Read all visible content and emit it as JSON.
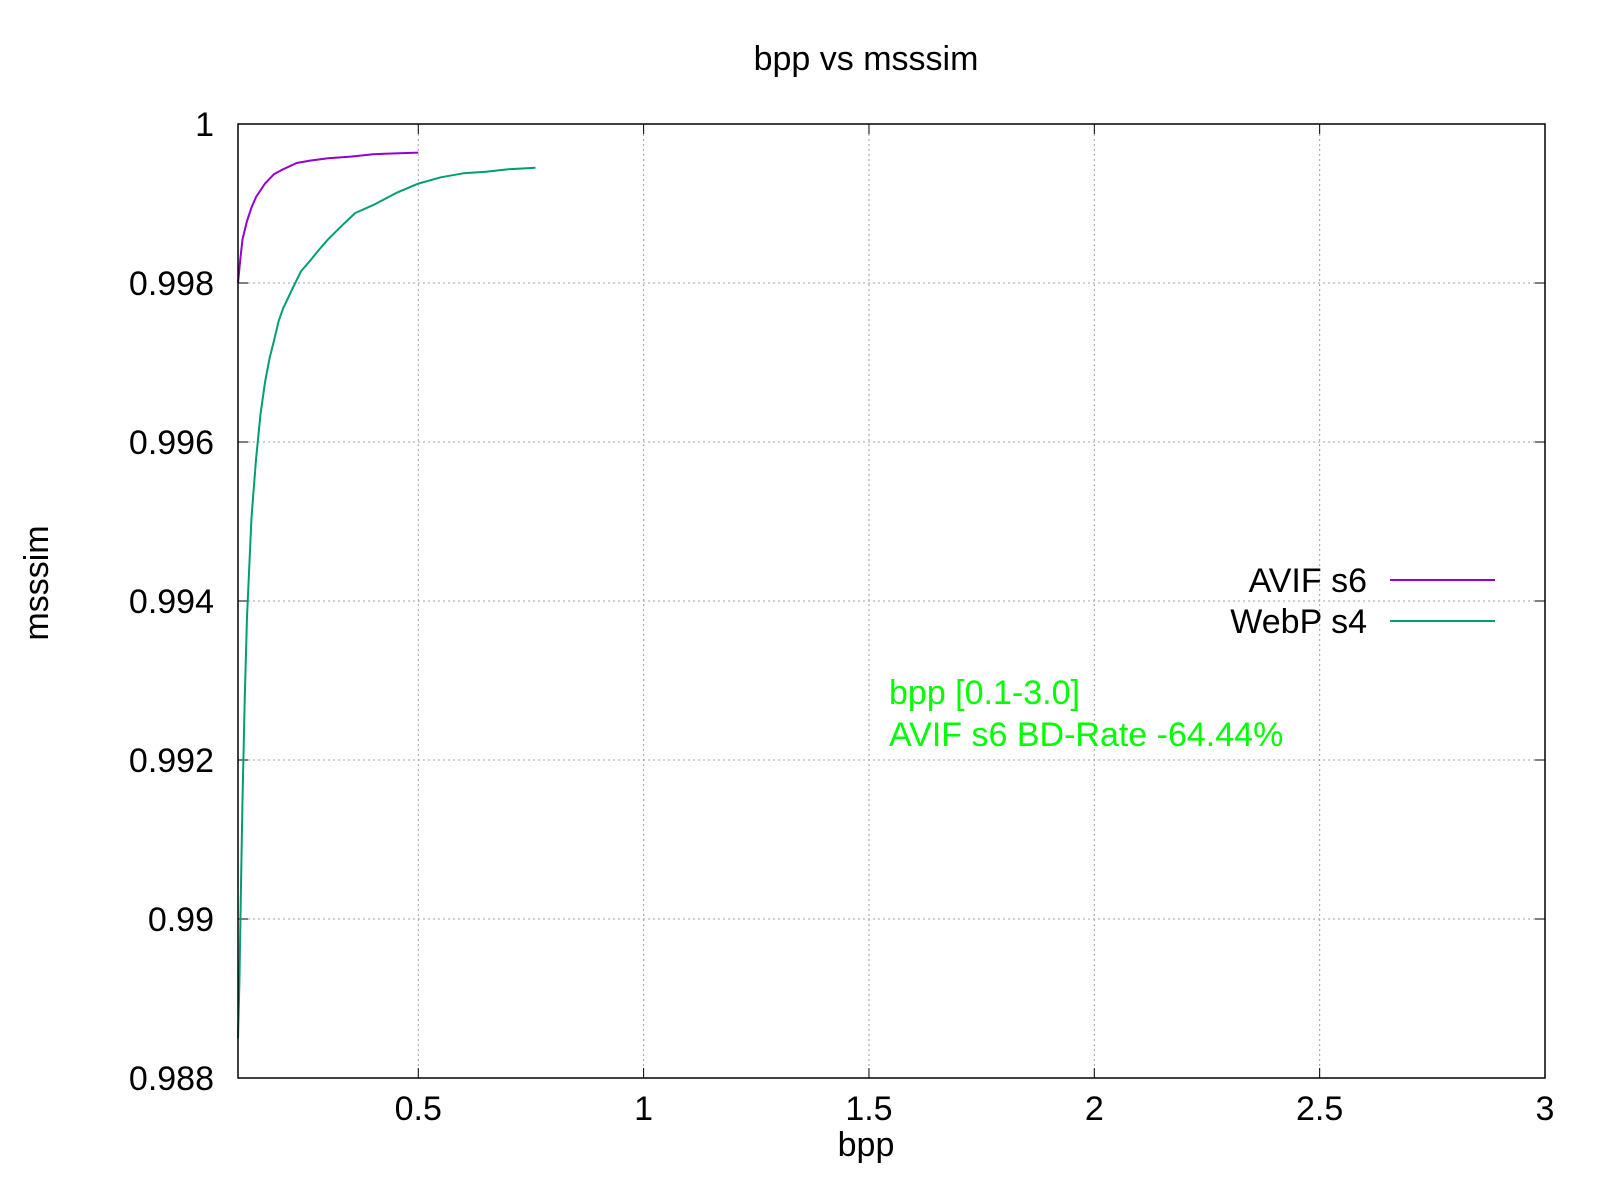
{
  "chart_data": {
    "type": "line",
    "title": "bpp vs msssim",
    "xlabel": "bpp",
    "ylabel": "msssim",
    "xlim": [
      0.1,
      3.0
    ],
    "ylim": [
      0.988,
      1.0
    ],
    "x_ticks": [
      0.5,
      1,
      1.5,
      2,
      2.5,
      3
    ],
    "x_tick_labels": [
      "0.5",
      "1",
      "1.5",
      "2",
      "2.5",
      "3"
    ],
    "y_ticks": [
      0.988,
      0.99,
      0.992,
      0.994,
      0.996,
      0.998,
      1
    ],
    "y_tick_labels": [
      "0.988",
      "0.99",
      "0.992",
      "0.994",
      "0.996",
      "0.998",
      "1"
    ],
    "grid": true,
    "legend_position": "right",
    "series": [
      {
        "name": "AVIF s6",
        "color": "#9400d3",
        "x": [
          0.1,
          0.105,
          0.11,
          0.12,
          0.13,
          0.14,
          0.16,
          0.18,
          0.2,
          0.23,
          0.26,
          0.3,
          0.35,
          0.4,
          0.45,
          0.5
        ],
        "y": [
          0.998,
          0.9983,
          0.99855,
          0.99878,
          0.99895,
          0.99908,
          0.99925,
          0.99937,
          0.99943,
          0.99951,
          0.99954,
          0.99957,
          0.99959,
          0.99962,
          0.99963,
          0.99964
        ]
      },
      {
        "name": "WebP s4",
        "color": "#009e73",
        "x": [
          0.1,
          0.103,
          0.106,
          0.11,
          0.115,
          0.12,
          0.13,
          0.14,
          0.15,
          0.16,
          0.17,
          0.18,
          0.19,
          0.2,
          0.22,
          0.24,
          0.26,
          0.28,
          0.3,
          0.33,
          0.36,
          0.4,
          0.45,
          0.5,
          0.55,
          0.6,
          0.65,
          0.7,
          0.76
        ],
        "y": [
          0.9885,
          0.9892,
          0.9902,
          0.9915,
          0.9928,
          0.9938,
          0.99505,
          0.99578,
          0.99635,
          0.99675,
          0.99705,
          0.99728,
          0.99752,
          0.99768,
          0.99792,
          0.99815,
          0.99828,
          0.99842,
          0.99855,
          0.99872,
          0.99888,
          0.99898,
          0.99913,
          0.99925,
          0.99933,
          0.99938,
          0.9994,
          0.99943,
          0.99945
        ]
      }
    ],
    "annotations": [
      "bpp [0.1-3.0]",
      "AVIF s6 BD-Rate -64.44%"
    ],
    "annotation_color": "#00ff00"
  }
}
